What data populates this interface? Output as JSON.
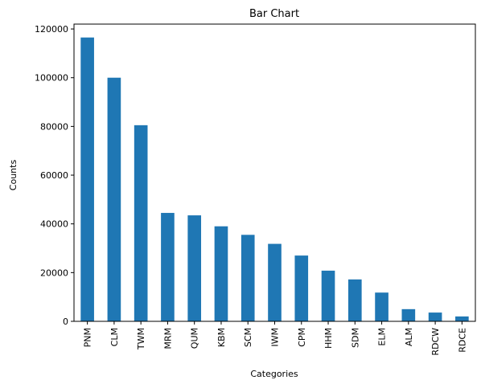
{
  "chart_data": {
    "type": "bar",
    "title": "Bar Chart",
    "xlabel": "Categories",
    "ylabel": "Counts",
    "categories": [
      "PNM",
      "CLM",
      "TWM",
      "MRM",
      "QUM",
      "KBM",
      "SCM",
      "IWM",
      "CPM",
      "HHM",
      "SDM",
      "ELM",
      "ALM",
      "RDCW",
      "RDCE"
    ],
    "values": [
      116500,
      100000,
      80500,
      44500,
      43500,
      39000,
      35500,
      31800,
      27000,
      20800,
      17200,
      11800,
      5000,
      3600,
      2000
    ],
    "ylim": [
      0,
      122000
    ],
    "yticks": [
      0,
      20000,
      40000,
      60000,
      80000,
      100000,
      120000
    ],
    "grid": false,
    "bar_color": "#1f77b4"
  }
}
